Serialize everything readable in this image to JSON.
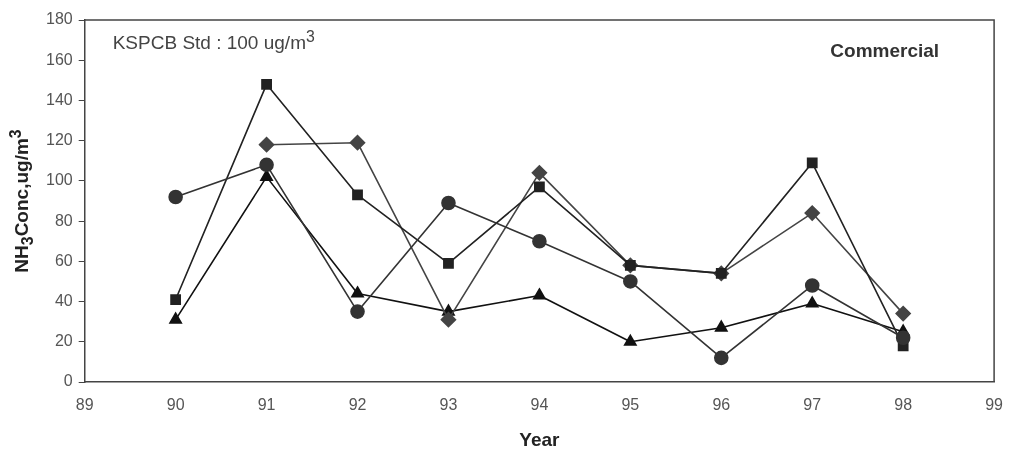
{
  "chart_data": {
    "type": "line",
    "xlabel": "Year",
    "ylabel": "NH$_{3}$Conc,ug/m$^{3}$",
    "annotations": [
      "KSPCB Std : 100 ug/m$^{3}$",
      "Commercial"
    ],
    "x": [
      90,
      91,
      92,
      93,
      94,
      95,
      96,
      97,
      98
    ],
    "series": [
      {
        "color": "#333333",
        "marker": "circle",
        "values": [
          92,
          108,
          35,
          89,
          70,
          50,
          12,
          48,
          22
        ]
      },
      {
        "color": "#222222",
        "marker": "square",
        "values": [
          41,
          148,
          93,
          59,
          97,
          58,
          54,
          109,
          18
        ]
      },
      {
        "color": "#444444",
        "marker": "diamond",
        "values": [
          null,
          118,
          119,
          31,
          104,
          58,
          54,
          84,
          34
        ]
      },
      {
        "color": "#111111",
        "marker": "triangle",
        "values": [
          31,
          102,
          44,
          35,
          43,
          20,
          27,
          39,
          25
        ]
      }
    ],
    "xlim": [
      89,
      99
    ],
    "xticks": [
      89,
      90,
      91,
      92,
      93,
      94,
      95,
      96,
      97,
      98,
      99
    ],
    "ylim": [
      0,
      180
    ],
    "yticks": [
      0,
      20,
      40,
      60,
      80,
      100,
      120,
      140,
      160,
      180
    ],
    "grid": false,
    "legend": false,
    "line_style": "solid"
  }
}
